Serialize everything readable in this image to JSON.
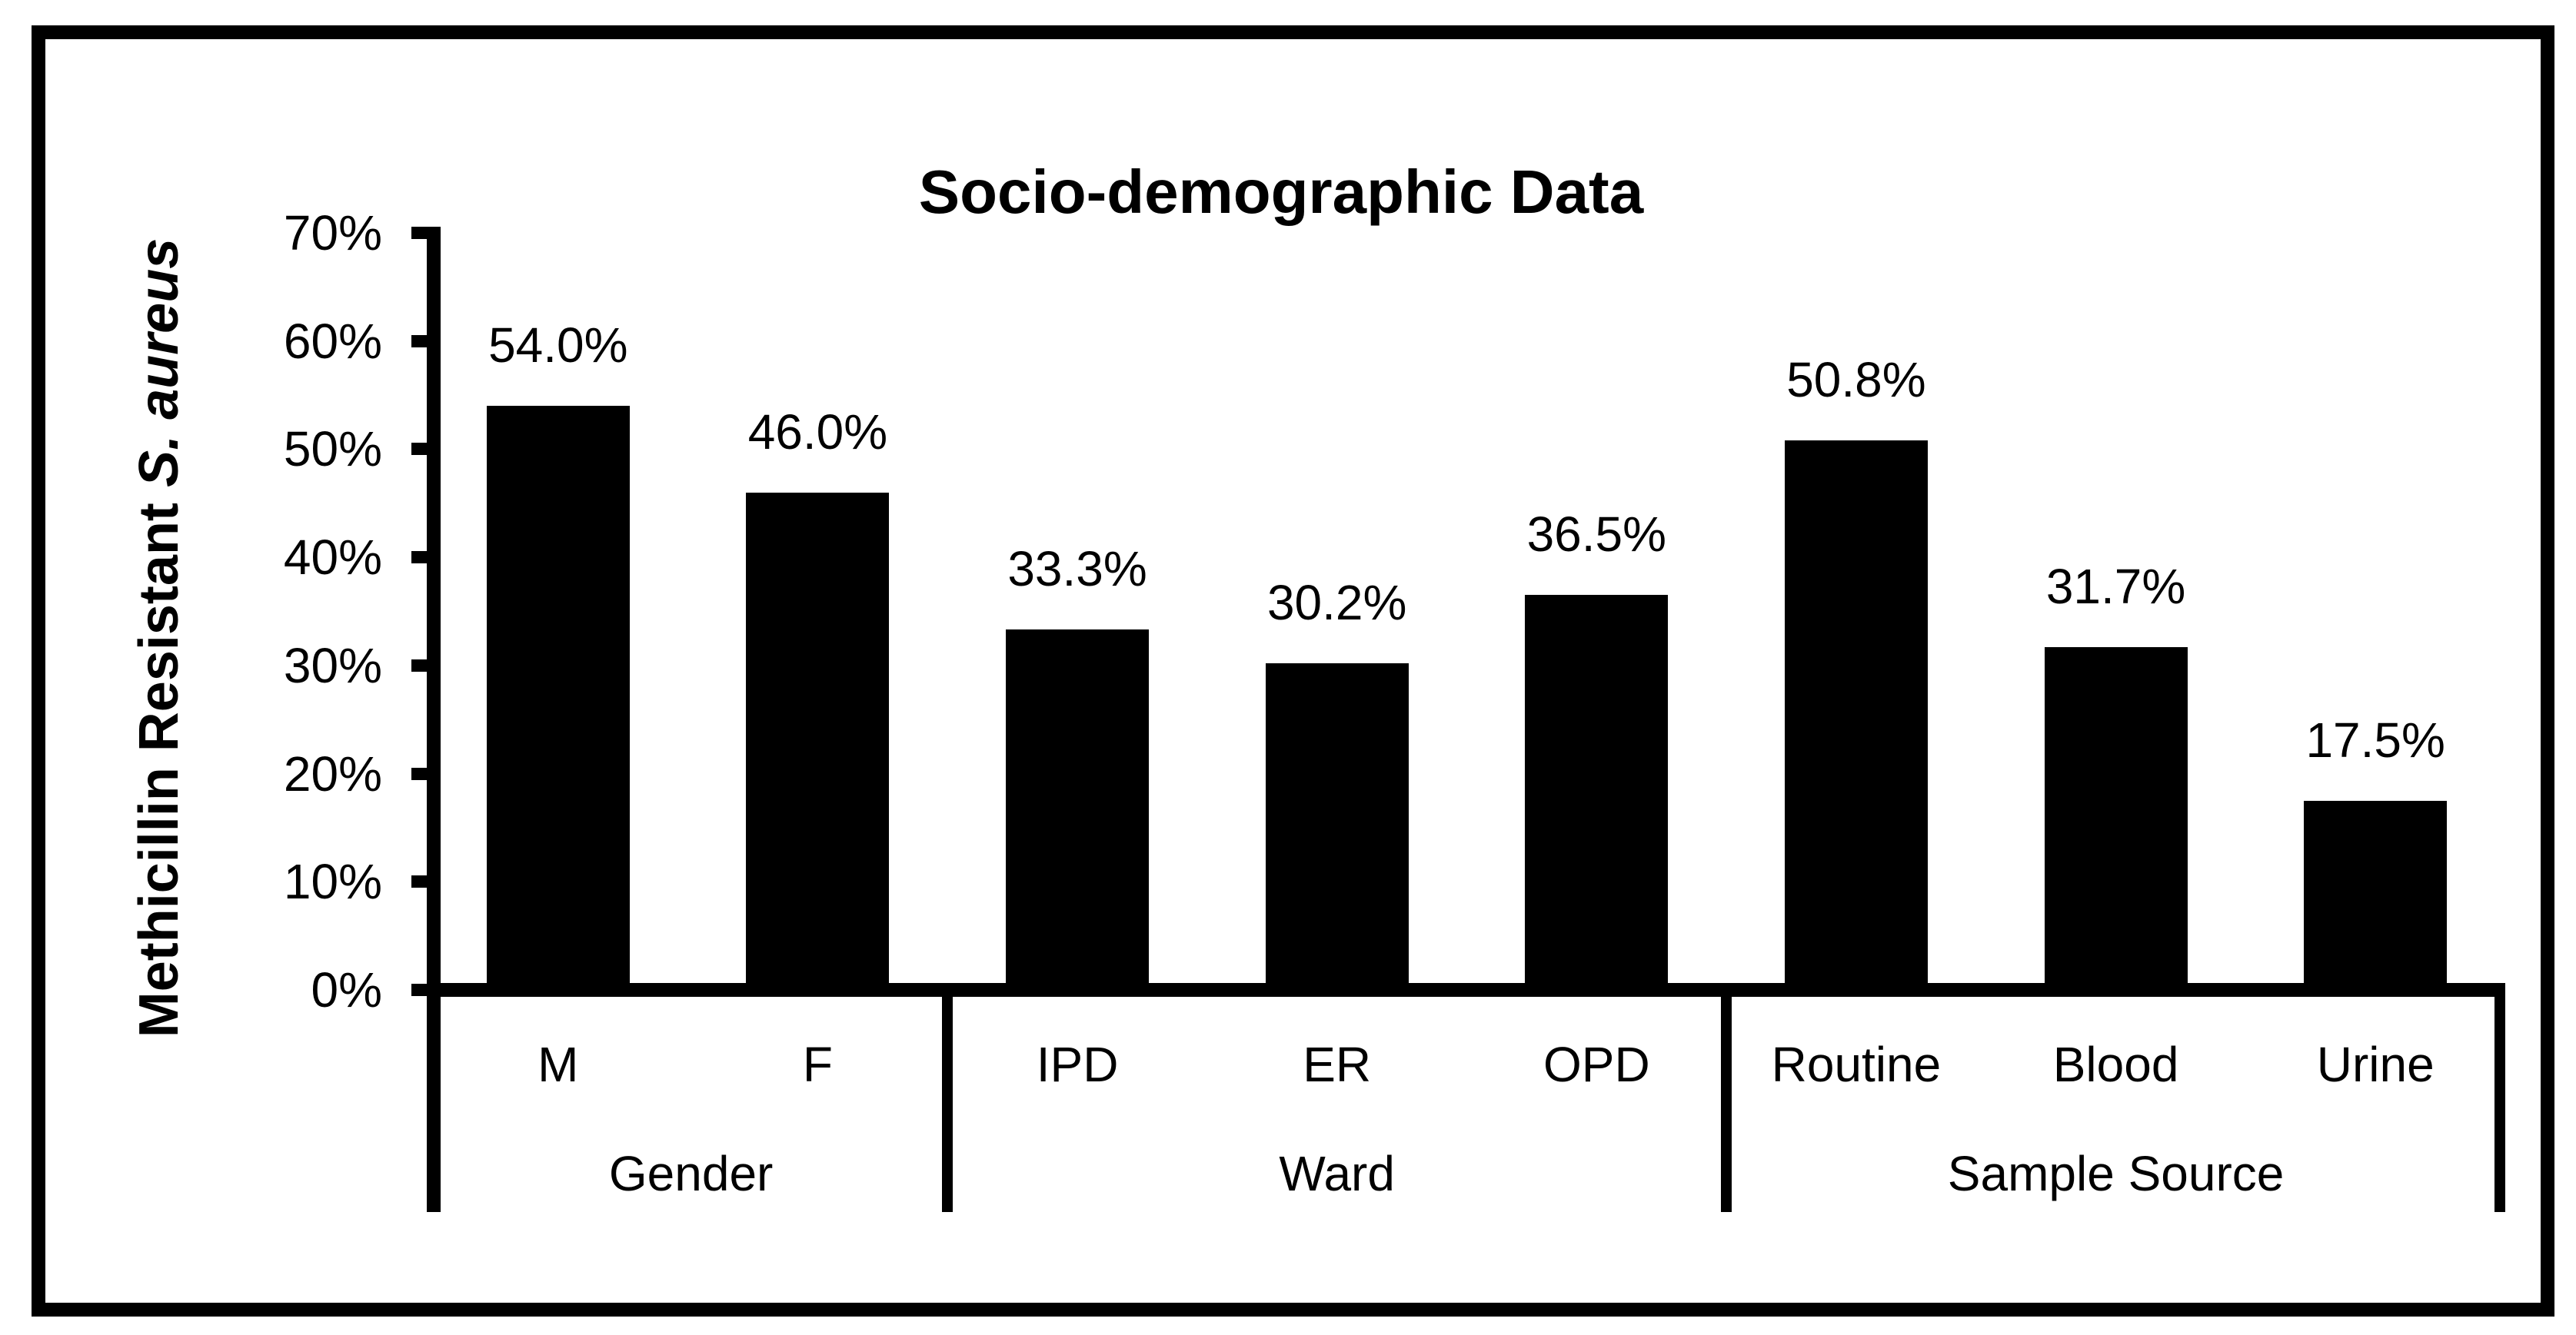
{
  "chart_data": {
    "type": "bar",
    "title": "Socio-demographic Data",
    "ylabel_regular": "Methicillin Resistant",
    "ylabel_italic": "S. aureus",
    "ylim": [
      0,
      70
    ],
    "ytick_step": 10,
    "yticks": [
      "0%",
      "10%",
      "20%",
      "30%",
      "40%",
      "50%",
      "60%",
      "70%"
    ],
    "legend": "none",
    "grid": "off",
    "bar_color": "#000000",
    "background_color": "#ffffff",
    "categories": [
      "M",
      "F",
      "IPD",
      "ER",
      "OPD",
      "Routine",
      "Blood",
      "Urine"
    ],
    "values": [
      54.0,
      46.0,
      33.3,
      30.2,
      36.5,
      50.8,
      31.7,
      17.5
    ],
    "groups": [
      {
        "label": "Gender",
        "bars": [
          {
            "category": "M",
            "value": 54.0,
            "data_label": "54.0%"
          },
          {
            "category": "F",
            "value": 46.0,
            "data_label": "46.0%"
          }
        ]
      },
      {
        "label": "Ward",
        "bars": [
          {
            "category": "IPD",
            "value": 33.3,
            "data_label": "33.3%"
          },
          {
            "category": "ER",
            "value": 30.2,
            "data_label": "30.2%"
          },
          {
            "category": "OPD",
            "value": 36.5,
            "data_label": "36.5%"
          }
        ]
      },
      {
        "label": "Sample Source",
        "bars": [
          {
            "category": "Routine",
            "value": 50.8,
            "data_label": "50.8%"
          },
          {
            "category": "Blood",
            "value": 31.7,
            "data_label": "31.7%"
          },
          {
            "category": "Urine",
            "value": 17.5,
            "data_label": "17.5%"
          }
        ]
      }
    ]
  }
}
